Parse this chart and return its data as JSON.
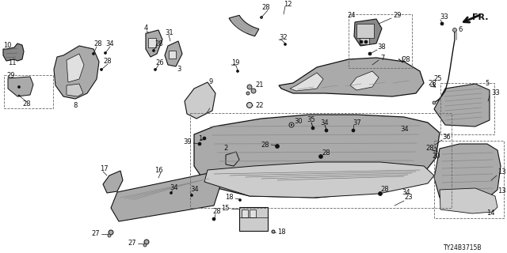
{
  "bg": "#ffffff",
  "lc": "#111111",
  "tc": "#111111",
  "gray1": "#888888",
  "gray2": "#aaaaaa",
  "gray3": "#cccccc",
  "gray4": "#e0e0e0",
  "diagram_code": "TY24B3715B",
  "figsize": [
    6.4,
    3.2
  ],
  "dpi": 100
}
